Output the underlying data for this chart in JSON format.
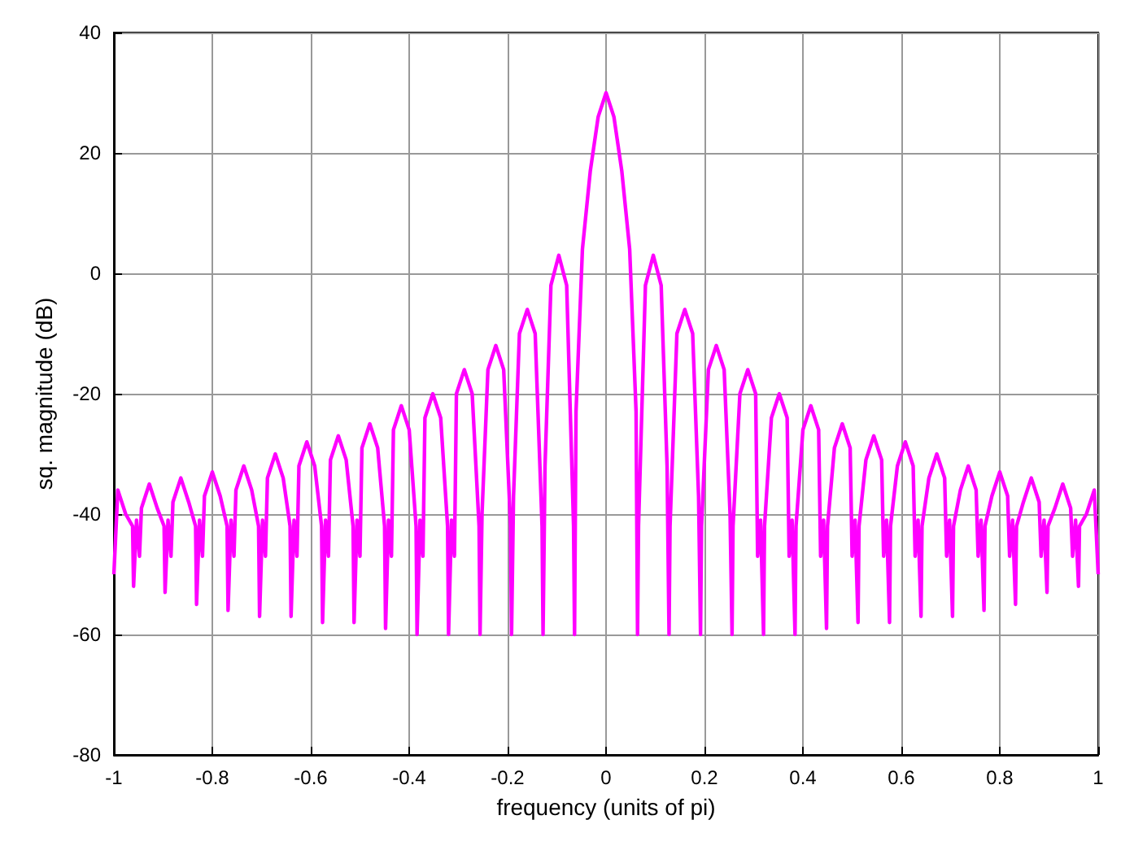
{
  "chart_data": {
    "type": "line",
    "xlabel": "frequency (units of pi)",
    "ylabel": "sq. magnitude (dB)",
    "xlim": [
      -1,
      1
    ],
    "xticks": [
      -1,
      -0.8,
      -0.6,
      -0.4,
      -0.2,
      0,
      0.2,
      0.4,
      0.6,
      0.8,
      1
    ],
    "ylim": [
      -80,
      40
    ],
    "yticks": [
      -80,
      -60,
      -40,
      -20,
      0,
      20,
      40
    ],
    "grid": true,
    "x": [
      -1,
      -0.992,
      -0.976,
      -0.962,
      -0.96,
      -0.954,
      -0.948,
      -0.944,
      -0.928,
      -0.912,
      -0.898,
      -0.896,
      -0.89,
      -0.884,
      -0.88,
      -0.864,
      -0.848,
      -0.834,
      -0.832,
      -0.826,
      -0.82,
      -0.816,
      -0.8,
      -0.784,
      -0.77,
      -0.768,
      -0.762,
      -0.756,
      -0.752,
      -0.736,
      -0.72,
      -0.706,
      -0.704,
      -0.698,
      -0.692,
      -0.688,
      -0.672,
      -0.656,
      -0.642,
      -0.64,
      -0.634,
      -0.628,
      -0.624,
      -0.608,
      -0.592,
      -0.578,
      -0.576,
      -0.57,
      -0.564,
      -0.56,
      -0.544,
      -0.528,
      -0.514,
      -0.512,
      -0.506,
      -0.5,
      -0.496,
      -0.48,
      -0.464,
      -0.45,
      -0.448,
      -0.442,
      -0.436,
      -0.432,
      -0.416,
      -0.4,
      -0.386,
      -0.384,
      -0.378,
      -0.372,
      -0.368,
      -0.352,
      -0.336,
      -0.322,
      -0.32,
      -0.314,
      -0.308,
      -0.304,
      -0.288,
      -0.272,
      -0.258,
      -0.256,
      -0.252,
      -0.24,
      -0.224,
      -0.208,
      -0.194,
      -0.192,
      -0.188,
      -0.176,
      -0.16,
      -0.144,
      -0.13,
      -0.128,
      -0.124,
      -0.112,
      -0.096,
      -0.08,
      -0.066,
      -0.064,
      -0.061,
      -0.048,
      -0.032,
      -0.016,
      0,
      0.016,
      0.032,
      0.048,
      0.061,
      0.064,
      0.066,
      0.08,
      0.096,
      0.112,
      0.124,
      0.128,
      0.13,
      0.144,
      0.16,
      0.176,
      0.188,
      0.192,
      0.194,
      0.208,
      0.224,
      0.24,
      0.252,
      0.256,
      0.258,
      0.272,
      0.288,
      0.304,
      0.308,
      0.314,
      0.32,
      0.322,
      0.336,
      0.352,
      0.368,
      0.372,
      0.378,
      0.384,
      0.386,
      0.4,
      0.416,
      0.432,
      0.436,
      0.442,
      0.448,
      0.45,
      0.464,
      0.48,
      0.496,
      0.5,
      0.506,
      0.512,
      0.514,
      0.528,
      0.544,
      0.56,
      0.564,
      0.57,
      0.576,
      0.578,
      0.592,
      0.608,
      0.624,
      0.628,
      0.634,
      0.64,
      0.642,
      0.656,
      0.672,
      0.688,
      0.692,
      0.698,
      0.704,
      0.706,
      0.72,
      0.736,
      0.752,
      0.756,
      0.762,
      0.768,
      0.77,
      0.784,
      0.8,
      0.816,
      0.82,
      0.826,
      0.832,
      0.834,
      0.848,
      0.864,
      0.88,
      0.884,
      0.89,
      0.896,
      0.898,
      0.912,
      0.928,
      0.944,
      0.948,
      0.954,
      0.96,
      0.962,
      0.976,
      0.992,
      1
    ],
    "series": [
      {
        "color": "#ff00ff",
        "values": [
          -50,
          -36,
          -40,
          -42,
          -52,
          -41,
          -47,
          -39,
          -35,
          -39,
          -42,
          -53,
          -41,
          -47,
          -38,
          -34,
          -38,
          -42,
          -55,
          -41,
          -47,
          -37,
          -33,
          -37,
          -42,
          -56,
          -41,
          -47,
          -36,
          -32,
          -36,
          -42,
          -57,
          -41,
          -47,
          -34,
          -30,
          -34,
          -42,
          -57,
          -41,
          -47,
          -32,
          -28,
          -32,
          -42,
          -58,
          -41,
          -47,
          -31,
          -27,
          -31,
          -42,
          -58,
          -41,
          -47,
          -29,
          -25,
          -29,
          -42,
          -59,
          -41,
          -47,
          -26,
          -22,
          -26,
          -42,
          -60,
          -41,
          -47,
          -24,
          -20,
          -24,
          -42,
          -60,
          -41,
          -47,
          -20,
          -16,
          -20,
          -42,
          -60,
          -40,
          -16,
          -12,
          -16,
          -42,
          -60,
          -37,
          -10,
          -6,
          -10,
          -42,
          -60,
          -32,
          -2,
          3,
          -2,
          -42,
          -60,
          -23,
          4,
          17,
          26,
          30,
          26,
          17,
          4,
          -23,
          -60,
          -42,
          -2,
          3,
          -2,
          -32,
          -60,
          -42,
          -10,
          -6,
          -10,
          -37,
          -60,
          -42,
          -16,
          -12,
          -16,
          -40,
          -60,
          -42,
          -20,
          -16,
          -20,
          -47,
          -41,
          -60,
          -42,
          -24,
          -20,
          -24,
          -47,
          -41,
          -60,
          -42,
          -26,
          -22,
          -26,
          -47,
          -41,
          -59,
          -42,
          -29,
          -25,
          -29,
          -47,
          -41,
          -58,
          -42,
          -31,
          -27,
          -31,
          -47,
          -41,
          -58,
          -42,
          -32,
          -28,
          -32,
          -47,
          -41,
          -57,
          -42,
          -34,
          -30,
          -34,
          -47,
          -41,
          -57,
          -42,
          -36,
          -32,
          -36,
          -47,
          -41,
          -56,
          -42,
          -37,
          -33,
          -37,
          -47,
          -41,
          -55,
          -42,
          -38,
          -34,
          -38,
          -47,
          -41,
          -53,
          -42,
          -39,
          -35,
          -39,
          -47,
          -41,
          -52,
          -42,
          -40,
          -36,
          -50
        ]
      }
    ]
  }
}
